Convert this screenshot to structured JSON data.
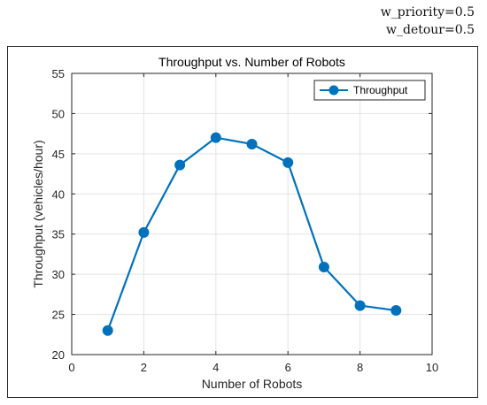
{
  "header": {
    "param_priority": "w_priority=0.5",
    "param_detour": "w_detour=0.5"
  },
  "chart_data": {
    "type": "line",
    "title": "Throughput vs. Number of Robots",
    "xlabel": "Number of Robots",
    "ylabel": "Throughput (vehicles/hour)",
    "xlim": [
      0,
      10
    ],
    "ylim": [
      20,
      55
    ],
    "xticks": [
      0,
      2,
      4,
      6,
      8,
      10
    ],
    "yticks": [
      20,
      25,
      30,
      35,
      40,
      45,
      50,
      55
    ],
    "grid": true,
    "legend_position": "top-right",
    "series": [
      {
        "name": "Throughput",
        "color": "#0072BD",
        "marker": "circle",
        "x": [
          1,
          2,
          3,
          4,
          5,
          6,
          7,
          8,
          9
        ],
        "y": [
          23.0,
          35.2,
          43.6,
          47.0,
          46.2,
          43.9,
          30.9,
          26.1,
          25.5
        ]
      }
    ]
  }
}
